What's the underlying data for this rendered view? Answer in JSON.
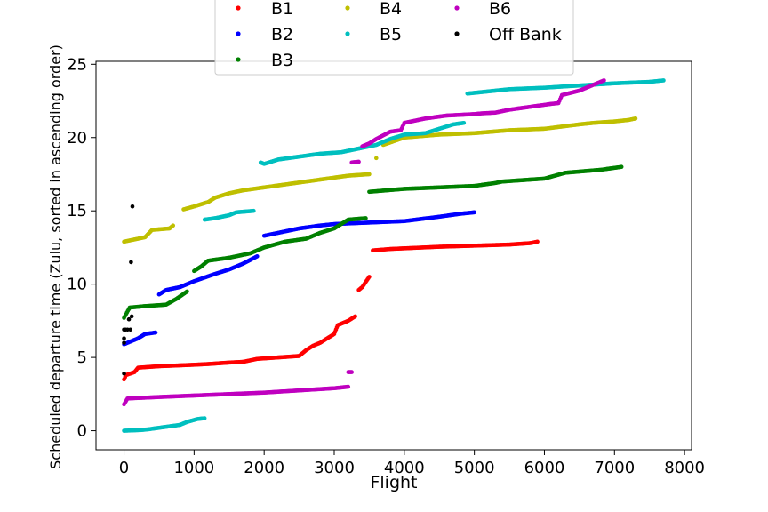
{
  "chart_data": {
    "type": "scatter",
    "title": "",
    "xlabel": "Flight",
    "ylabel": "Scheduled departure time (Zulu, sorted in ascending order)",
    "xlim": [
      -400,
      8100
    ],
    "ylim": [
      -1.3,
      25.2
    ],
    "xticks": [
      0,
      1000,
      2000,
      3000,
      4000,
      5000,
      6000,
      7000,
      8000
    ],
    "xtick_labels": [
      "0",
      "1000",
      "2000",
      "3000",
      "4000",
      "5000",
      "6000",
      "7000",
      "8000"
    ],
    "yticks": [
      0,
      5,
      10,
      15,
      20,
      25
    ],
    "ytick_labels": [
      "0",
      "5",
      "10",
      "15",
      "20",
      "25"
    ],
    "grid": false,
    "legend_position": "top-center",
    "series": [
      {
        "name": "B1",
        "color": "#ff0000",
        "points": [
          [
            0,
            3.5
          ],
          [
            30,
            3.8
          ],
          [
            150,
            4.0
          ],
          [
            200,
            4.3
          ],
          [
            500,
            4.4
          ],
          [
            1000,
            4.5
          ],
          [
            1200,
            4.55
          ],
          [
            1500,
            4.65
          ],
          [
            1700,
            4.7
          ],
          [
            1900,
            4.9
          ],
          [
            2200,
            5.0
          ],
          [
            2500,
            5.1
          ],
          [
            2550,
            5.3
          ],
          [
            2600,
            5.5
          ],
          [
            2700,
            5.8
          ],
          [
            2800,
            6.0
          ],
          [
            2900,
            6.3
          ],
          [
            3000,
            6.6
          ],
          [
            3050,
            7.2
          ],
          [
            3200,
            7.5
          ],
          [
            3300,
            7.8
          ],
          [
            3350,
            9.6
          ],
          [
            3400,
            9.8
          ],
          [
            3500,
            10.5
          ],
          [
            3550,
            12.3
          ],
          [
            3800,
            12.4
          ],
          [
            4500,
            12.55
          ],
          [
            5500,
            12.7
          ],
          [
            5800,
            12.8
          ],
          [
            5900,
            12.9
          ]
        ]
      },
      {
        "name": "B2",
        "color": "#0000ff",
        "points": [
          [
            0,
            5.9
          ],
          [
            100,
            6.1
          ],
          [
            200,
            6.3
          ],
          [
            300,
            6.6
          ],
          [
            450,
            6.7
          ],
          [
            500,
            9.3
          ],
          [
            600,
            9.6
          ],
          [
            800,
            9.8
          ],
          [
            1000,
            10.2
          ],
          [
            1300,
            10.7
          ],
          [
            1500,
            11.0
          ],
          [
            1700,
            11.4
          ],
          [
            1900,
            11.9
          ],
          [
            2000,
            13.3
          ],
          [
            2200,
            13.5
          ],
          [
            2500,
            13.8
          ],
          [
            2800,
            14.0
          ],
          [
            3000,
            14.1
          ],
          [
            3500,
            14.2
          ],
          [
            4000,
            14.3
          ],
          [
            4500,
            14.6
          ],
          [
            4800,
            14.8
          ],
          [
            5000,
            14.9
          ]
        ]
      },
      {
        "name": "B3",
        "color": "#008000",
        "points": [
          [
            0,
            7.7
          ],
          [
            80,
            8.4
          ],
          [
            300,
            8.5
          ],
          [
            600,
            8.6
          ],
          [
            750,
            9.0
          ],
          [
            900,
            9.5
          ],
          [
            1000,
            10.9
          ],
          [
            1100,
            11.2
          ],
          [
            1200,
            11.6
          ],
          [
            1500,
            11.8
          ],
          [
            1800,
            12.1
          ],
          [
            2000,
            12.5
          ],
          [
            2300,
            12.9
          ],
          [
            2600,
            13.1
          ],
          [
            2800,
            13.5
          ],
          [
            3000,
            13.8
          ],
          [
            3100,
            14.1
          ],
          [
            3200,
            14.4
          ],
          [
            3450,
            14.5
          ],
          [
            3500,
            16.3
          ],
          [
            4000,
            16.5
          ],
          [
            5000,
            16.7
          ],
          [
            5300,
            16.9
          ],
          [
            5400,
            17.0
          ],
          [
            6000,
            17.2
          ],
          [
            6300,
            17.6
          ],
          [
            6800,
            17.8
          ],
          [
            7100,
            18.0
          ]
        ]
      },
      {
        "name": "B4",
        "color": "#bfbf00",
        "points": [
          [
            0,
            12.9
          ],
          [
            100,
            13.0
          ],
          [
            300,
            13.2
          ],
          [
            400,
            13.7
          ],
          [
            650,
            13.8
          ],
          [
            700,
            14.0
          ],
          [
            850,
            15.1
          ],
          [
            1000,
            15.3
          ],
          [
            1200,
            15.6
          ],
          [
            1300,
            15.9
          ],
          [
            1500,
            16.2
          ],
          [
            1700,
            16.4
          ],
          [
            2000,
            16.6
          ],
          [
            2300,
            16.8
          ],
          [
            2600,
            17.0
          ],
          [
            2900,
            17.2
          ],
          [
            3200,
            17.4
          ],
          [
            3500,
            17.5
          ],
          [
            3600,
            18.6
          ],
          [
            3700,
            19.5
          ],
          [
            4000,
            20.0
          ],
          [
            4500,
            20.2
          ],
          [
            5000,
            20.3
          ],
          [
            5500,
            20.5
          ],
          [
            6000,
            20.6
          ],
          [
            6500,
            20.9
          ],
          [
            6700,
            21.0
          ],
          [
            7000,
            21.1
          ],
          [
            7200,
            21.2
          ],
          [
            7300,
            21.3
          ]
        ]
      },
      {
        "name": "B5",
        "color": "#00bfbf",
        "points": [
          [
            0,
            0.0
          ],
          [
            250,
            0.05
          ],
          [
            350,
            0.1
          ],
          [
            500,
            0.2
          ],
          [
            650,
            0.3
          ],
          [
            800,
            0.4
          ],
          [
            900,
            0.6
          ],
          [
            1050,
            0.8
          ],
          [
            1150,
            0.85
          ],
          [
            1150,
            14.4
          ],
          [
            1300,
            14.5
          ],
          [
            1500,
            14.7
          ],
          [
            1600,
            14.9
          ],
          [
            1850,
            15.0
          ],
          [
            1950,
            18.3
          ],
          [
            2000,
            18.2
          ],
          [
            2200,
            18.5
          ],
          [
            2500,
            18.7
          ],
          [
            2800,
            18.9
          ],
          [
            3100,
            19.0
          ],
          [
            3400,
            19.3
          ],
          [
            3600,
            19.5
          ],
          [
            3800,
            19.9
          ],
          [
            4000,
            20.2
          ],
          [
            4300,
            20.3
          ],
          [
            4500,
            20.6
          ],
          [
            4700,
            20.9
          ],
          [
            4850,
            21.0
          ],
          [
            4900,
            23.0
          ],
          [
            5100,
            23.1
          ],
          [
            5500,
            23.3
          ],
          [
            6000,
            23.4
          ],
          [
            6500,
            23.55
          ],
          [
            7000,
            23.7
          ],
          [
            7500,
            23.8
          ],
          [
            7700,
            23.9
          ]
        ]
      },
      {
        "name": "B6",
        "color": "#bf00bf",
        "points": [
          [
            0,
            1.8
          ],
          [
            50,
            2.2
          ],
          [
            500,
            2.3
          ],
          [
            1000,
            2.4
          ],
          [
            1500,
            2.5
          ],
          [
            2000,
            2.6
          ],
          [
            2500,
            2.75
          ],
          [
            3000,
            2.9
          ],
          [
            3200,
            3.0
          ],
          [
            3200,
            4.0
          ],
          [
            3250,
            4.0
          ],
          [
            3250,
            18.3
          ],
          [
            3350,
            18.35
          ],
          [
            3400,
            19.4
          ],
          [
            3500,
            19.6
          ],
          [
            3600,
            19.9
          ],
          [
            3800,
            20.4
          ],
          [
            3950,
            20.5
          ],
          [
            4000,
            21.0
          ],
          [
            4300,
            21.3
          ],
          [
            4600,
            21.5
          ],
          [
            5000,
            21.6
          ],
          [
            5100,
            21.65
          ],
          [
            5300,
            21.7
          ],
          [
            5500,
            21.9
          ],
          [
            5800,
            22.1
          ],
          [
            6100,
            22.3
          ],
          [
            6200,
            22.35
          ],
          [
            6250,
            22.9
          ],
          [
            6500,
            23.2
          ],
          [
            6700,
            23.6
          ],
          [
            6850,
            23.9
          ]
        ]
      },
      {
        "name": "Off Bank",
        "color": "#000000",
        "points": [
          [
            0,
            3.9
          ],
          [
            0,
            6.0
          ],
          [
            0,
            6.3
          ],
          [
            0,
            6.9
          ],
          [
            20,
            6.9
          ],
          [
            50,
            6.9
          ],
          [
            70,
            7.6
          ],
          [
            90,
            6.9
          ],
          [
            100,
            11.5
          ],
          [
            110,
            7.8
          ],
          [
            120,
            15.3
          ]
        ]
      }
    ]
  },
  "legend": {
    "items": [
      {
        "label": "B1",
        "color": "#ff0000"
      },
      {
        "label": "B2",
        "color": "#0000ff"
      },
      {
        "label": "B3",
        "color": "#008000"
      },
      {
        "label": "B4",
        "color": "#bfbf00"
      },
      {
        "label": "B5",
        "color": "#00bfbf"
      },
      {
        "label": "Off Bank",
        "color": "#000000"
      },
      {
        "label": "B6",
        "color": "#bf00bf"
      }
    ]
  }
}
